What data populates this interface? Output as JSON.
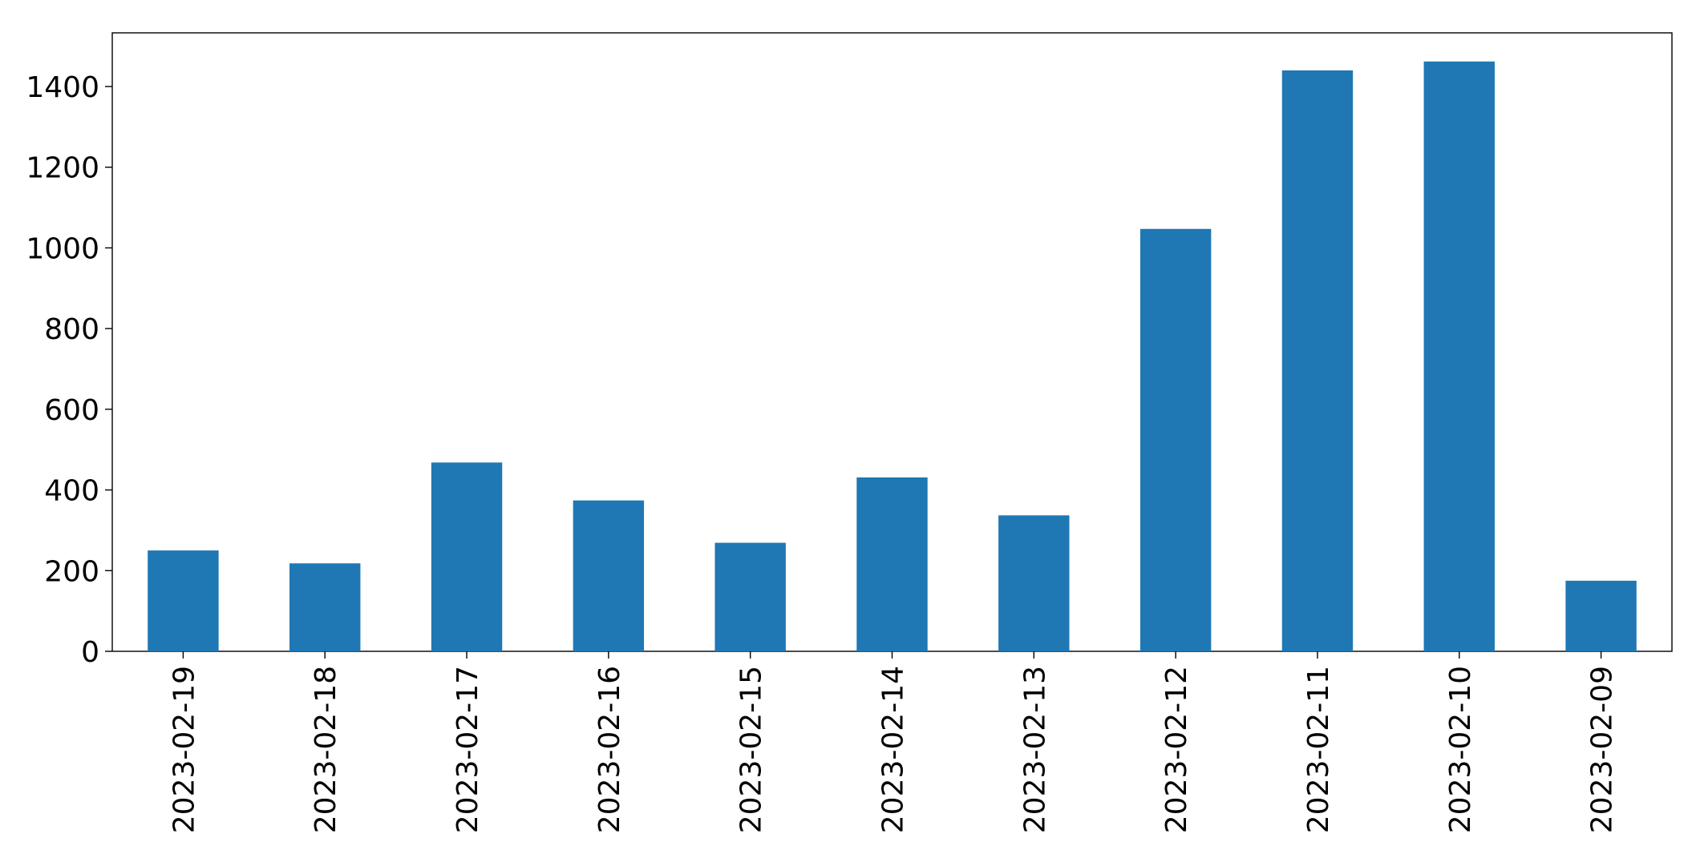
{
  "chart_data": {
    "type": "bar",
    "categories": [
      "2023-02-19",
      "2023-02-18",
      "2023-02-17",
      "2023-02-16",
      "2023-02-15",
      "2023-02-14",
      "2023-02-13",
      "2023-02-12",
      "2023-02-11",
      "2023-02-10",
      "2023-02-09"
    ],
    "values": [
      250,
      218,
      468,
      374,
      269,
      431,
      337,
      1047,
      1440,
      1462,
      175
    ],
    "color": "#1f77b4",
    "ylim": [
      0,
      1533
    ],
    "yticks": [
      0,
      200,
      400,
      600,
      800,
      1000,
      1200,
      1400
    ],
    "grid": false
  }
}
